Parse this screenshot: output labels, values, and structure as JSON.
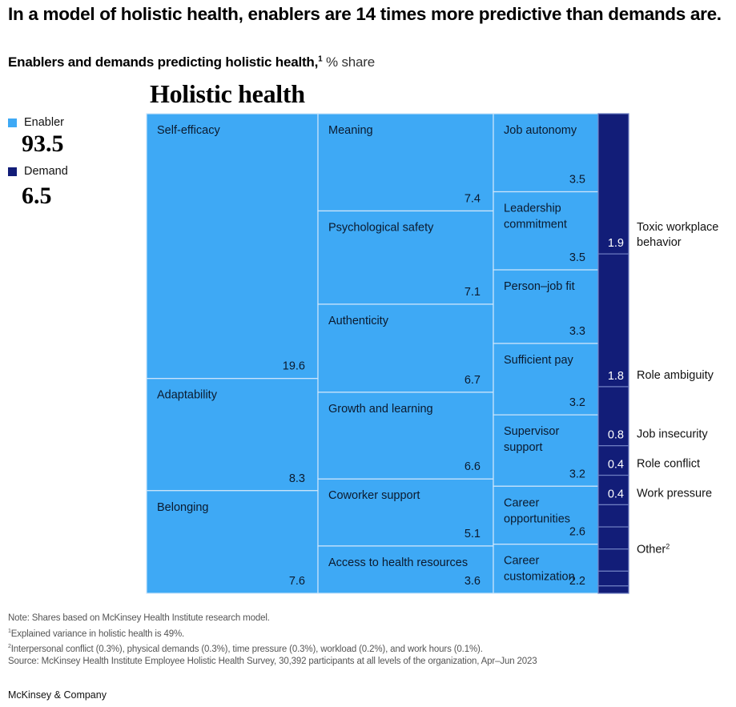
{
  "header": {
    "title": "In a model of holistic health, enablers are 14 times more predictive than demands are.",
    "subtitle_bold": "Enablers and demands predicting holistic health,",
    "subtitle_sup": "1",
    "subtitle_unit": " % share"
  },
  "legend": [
    {
      "label": "Enabler",
      "total": "93.5",
      "color": "#3ea9f5"
    },
    {
      "label": "Demand",
      "total": "6.5",
      "color": "#121d78"
    }
  ],
  "chart_data": {
    "type": "treemap",
    "title": "Holistic health",
    "unit": "% share",
    "categories": [
      {
        "name": "Enabler",
        "total": 93.5,
        "color": "#3ea9f5",
        "columns": [
          [
            {
              "label": "Self-efficacy",
              "value": 19.6
            },
            {
              "label": "Adaptability",
              "value": 8.3
            },
            {
              "label": "Belonging",
              "value": 7.6
            }
          ],
          [
            {
              "label": "Meaning",
              "value": 7.4
            },
            {
              "label": "Psychological safety",
              "value": 7.1
            },
            {
              "label": "Authenticity",
              "value": 6.7
            },
            {
              "label": "Growth and learning",
              "value": 6.6
            },
            {
              "label": "Coworker support",
              "value": 5.1
            },
            {
              "label": "Access to health resources",
              "value": 3.6
            }
          ],
          [
            {
              "label": "Job autonomy",
              "value": 3.5
            },
            {
              "label": "Leadership commitment",
              "value": 3.5
            },
            {
              "label": "Person–job fit",
              "value": 3.3
            },
            {
              "label": "Sufficient pay",
              "value": 3.2
            },
            {
              "label": "Supervisor support",
              "value": 3.2
            },
            {
              "label": "Career opportunities",
              "value": 2.6
            },
            {
              "label": "Career customization",
              "value": 2.2
            }
          ]
        ]
      },
      {
        "name": "Demand",
        "total": 6.5,
        "color": "#121d78",
        "items": [
          {
            "label": "Toxic workplace behavior",
            "value": 1.9
          },
          {
            "label": "Role ambiguity",
            "value": 1.8
          },
          {
            "label": "Job insecurity",
            "value": 0.8
          },
          {
            "label": "Role conflict",
            "value": 0.4
          },
          {
            "label": "Work pressure",
            "value": 0.4
          }
        ],
        "other": {
          "label": "Other",
          "footnote": "2",
          "items": [
            {
              "label": "Interpersonal conflict",
              "value": 0.3
            },
            {
              "label": "Physical demands",
              "value": 0.3
            },
            {
              "label": "Time pressure",
              "value": 0.3
            },
            {
              "label": "Workload",
              "value": 0.2
            },
            {
              "label": "Work hours",
              "value": 0.1
            }
          ]
        }
      }
    ]
  },
  "footnotes": {
    "note": "Note: Shares based on McKinsey Health Institute research model.",
    "fn1_mark": "1",
    "fn1": "Explained variance in holistic health is 49%.",
    "fn2_mark": "2",
    "fn2": "Interpersonal conflict (0.3%), physical demands (0.3%), time pressure (0.3%), workload (0.2%), and work hours (0.1%).",
    "source": "Source: McKinsey Health Institute Employee Holistic Health Survey, 30,392 participants at all levels of the organization, Apr–Jun 2023"
  },
  "brand": "McKinsey & Company"
}
